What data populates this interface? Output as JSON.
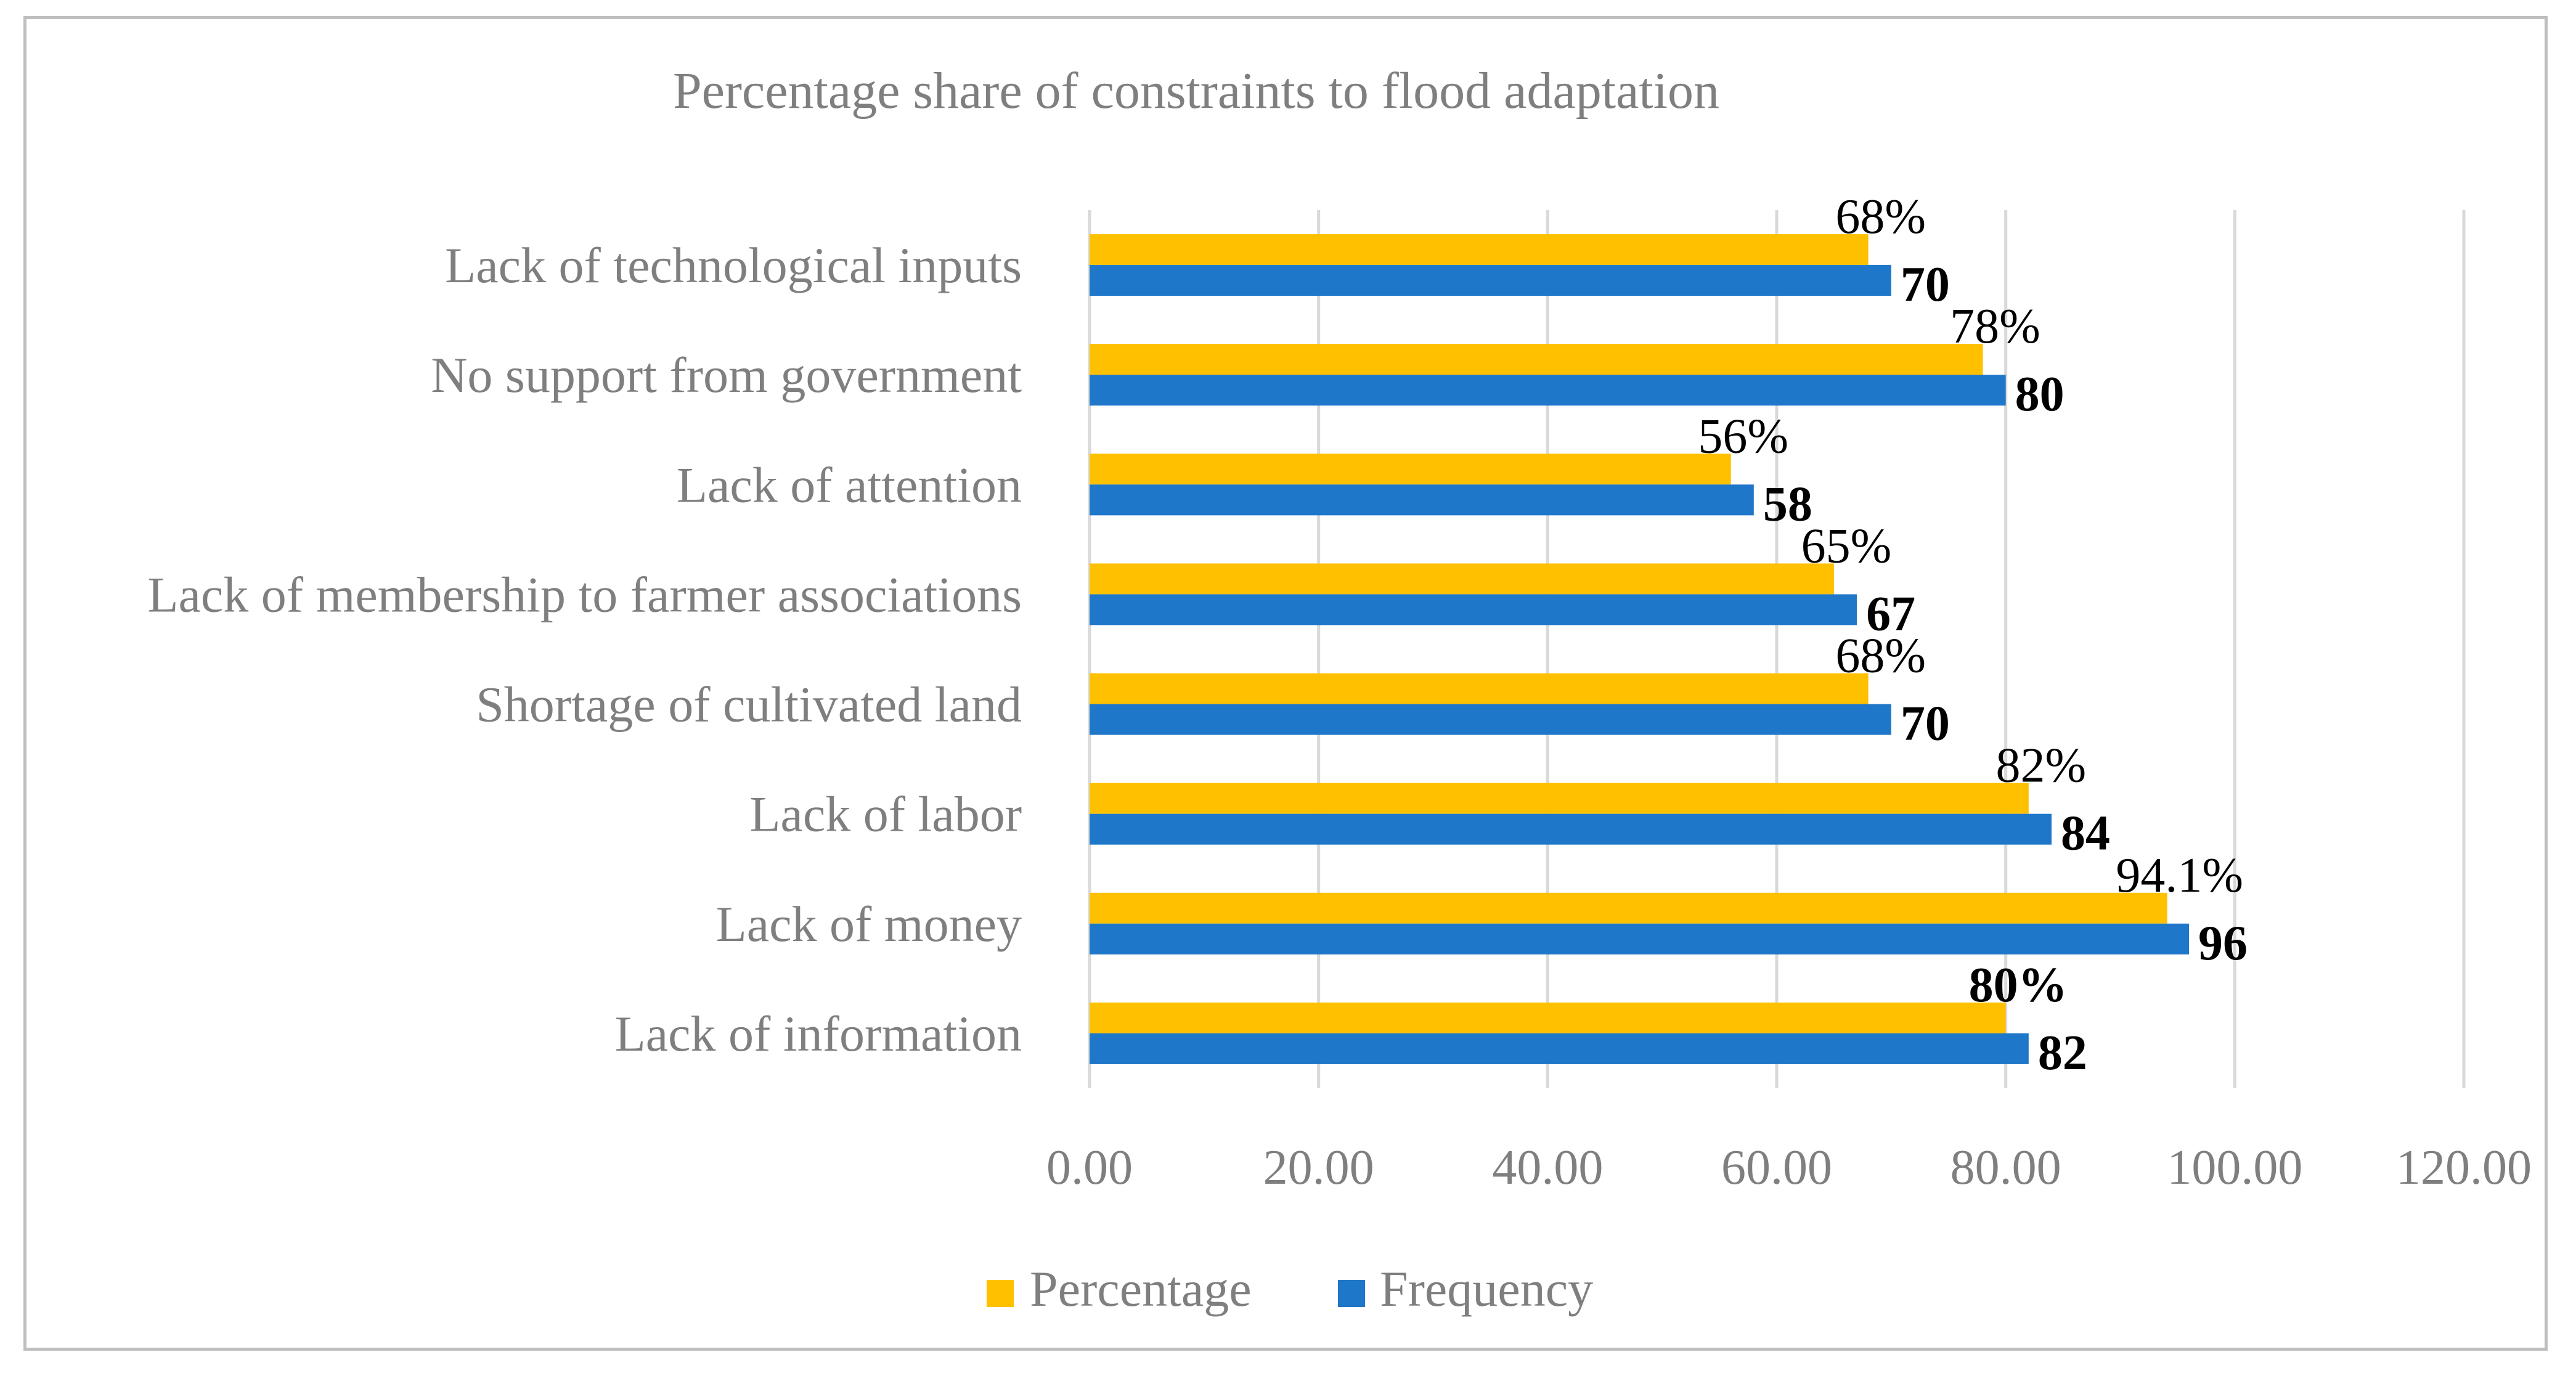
{
  "chart_data": {
    "type": "bar",
    "orientation": "horizontal",
    "title": "Percentage share of constraints to flood adaptation",
    "categories": [
      "Lack of technological inputs",
      "No support from government",
      "Lack of attention",
      "Lack of membership to farmer associations",
      "Shortage of cultivated land",
      "Lack of labor",
      "Lack of money",
      "Lack of information"
    ],
    "series": [
      {
        "name": "Percentage",
        "color": "#FFC000",
        "values": [
          68,
          78,
          56,
          65,
          68,
          82,
          94.1,
          80
        ],
        "labels": [
          "68%",
          "78%",
          "56%",
          "65%",
          "68%",
          "82%",
          "94.1%",
          "80%"
        ],
        "label_bold": [
          false,
          false,
          false,
          false,
          false,
          false,
          false,
          true
        ]
      },
      {
        "name": "Frequency",
        "color": "#1F77C9",
        "values": [
          70,
          80,
          58,
          67,
          70,
          84,
          96,
          82
        ],
        "labels": [
          "70",
          "80",
          "58",
          "67",
          "70",
          "84",
          "96",
          "82"
        ],
        "label_bold": [
          true,
          true,
          true,
          true,
          true,
          true,
          true,
          true
        ]
      }
    ],
    "xlim": [
      0,
      120
    ],
    "xticks": [
      0,
      20,
      40,
      60,
      80,
      100,
      120
    ],
    "xtick_labels": [
      "0.00",
      "20.00",
      "40.00",
      "60.00",
      "80.00",
      "100.00",
      "120.00"
    ],
    "grid": true,
    "legend": "bottom-center"
  }
}
